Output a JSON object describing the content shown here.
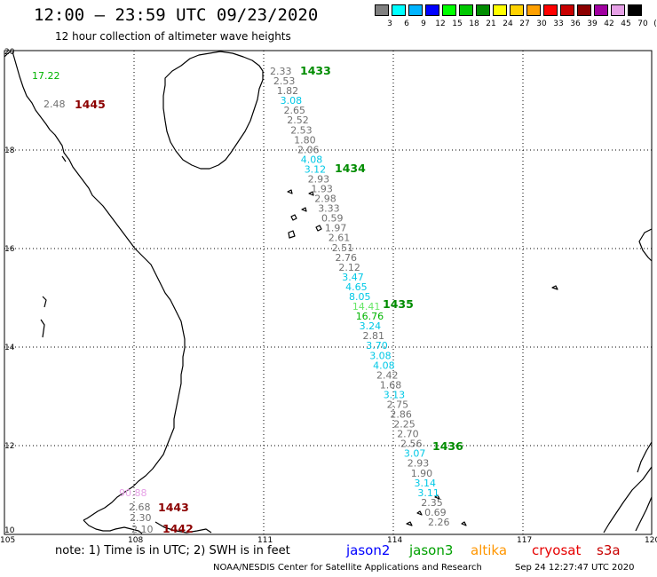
{
  "header": {
    "title": "12:00 – 23:59 UTC 09/23/2020",
    "subtitle": "12 hour collection of altimeter wave heights"
  },
  "legend": {
    "colors": [
      "#808080",
      "#00ffff",
      "#00b4ff",
      "#0000ff",
      "#00ff00",
      "#00c800",
      "#008c00",
      "#ffff00",
      "#ffd200",
      "#ffa000",
      "#ff0000",
      "#c80000",
      "#8c0000",
      "#a000a0",
      "#e6a0e6",
      "#000000"
    ],
    "labels": [
      "3",
      "6",
      "9",
      "12",
      "15",
      "18",
      "21",
      "24",
      "27",
      "30",
      "33",
      "36",
      "39",
      "42",
      "45",
      "70",
      "(ft)"
    ]
  },
  "axes": {
    "lon_labels": [
      "105",
      "108",
      "111",
      "114",
      "117",
      "120"
    ],
    "lat_labels": [
      "20",
      "18",
      "16",
      "14",
      "12",
      "10"
    ]
  },
  "track_values": [
    {
      "text": "2.33",
      "color": "#707070"
    },
    {
      "text": "2.53",
      "color": "#707070"
    },
    {
      "text": "1.82",
      "color": "#707070"
    },
    {
      "text": "3.08",
      "color": "#00c8e6"
    },
    {
      "text": "2.65",
      "color": "#707070"
    },
    {
      "text": "2.52",
      "color": "#707070"
    },
    {
      "text": "2.53",
      "color": "#707070"
    },
    {
      "text": "1.80",
      "color": "#707070"
    },
    {
      "text": "2.06",
      "color": "#707070"
    },
    {
      "text": "4.08",
      "color": "#00c8e6"
    },
    {
      "text": "3.12",
      "color": "#00c8e6"
    },
    {
      "text": "2.93",
      "color": "#707070"
    },
    {
      "text": "1.93",
      "color": "#707070"
    },
    {
      "text": "2.98",
      "color": "#707070"
    },
    {
      "text": "3.33",
      "color": "#707070"
    },
    {
      "text": "0.59",
      "color": "#707070"
    },
    {
      "text": "1.97",
      "color": "#707070"
    },
    {
      "text": "2.61",
      "color": "#707070"
    },
    {
      "text": "2.51",
      "color": "#707070"
    },
    {
      "text": "2.76",
      "color": "#707070"
    },
    {
      "text": "2.12",
      "color": "#707070"
    },
    {
      "text": "3.47",
      "color": "#00c8e6"
    },
    {
      "text": "4.65",
      "color": "#00c8e6"
    },
    {
      "text": "8.05",
      "color": "#00c8e6"
    },
    {
      "text": "14.41",
      "color": "#66e666"
    },
    {
      "text": "16.76",
      "color": "#00b400"
    },
    {
      "text": "3.24",
      "color": "#00c8e6"
    },
    {
      "text": "2.81",
      "color": "#707070"
    },
    {
      "text": "3.70",
      "color": "#00c8e6"
    },
    {
      "text": "3.08",
      "color": "#00c8e6"
    },
    {
      "text": "4.08",
      "color": "#00c8e6"
    },
    {
      "text": "2.42",
      "color": "#707070"
    },
    {
      "text": "1.68",
      "color": "#707070"
    },
    {
      "text": "3.13",
      "color": "#00c8e6"
    },
    {
      "text": "2.75",
      "color": "#707070"
    },
    {
      "text": "2.86",
      "color": "#707070"
    },
    {
      "text": "2.25",
      "color": "#707070"
    },
    {
      "text": "2.70",
      "color": "#707070"
    },
    {
      "text": "2.56",
      "color": "#707070"
    },
    {
      "text": "3.07",
      "color": "#00c8e6"
    },
    {
      "text": "2.93",
      "color": "#707070"
    },
    {
      "text": "1.90",
      "color": "#707070"
    },
    {
      "text": "3.14",
      "color": "#00c8e6"
    },
    {
      "text": "3.11",
      "color": "#00c8e6"
    },
    {
      "text": "2.35",
      "color": "#707070"
    },
    {
      "text": "0.69",
      "color": "#707070"
    },
    {
      "text": "2.26",
      "color": "#707070"
    }
  ],
  "pass_labels": {
    "p1433": "1433",
    "p1434": "1434",
    "p1435": "1435",
    "p1436": "1436",
    "p1445": "1445",
    "p1443": "1443",
    "p1442": "1442"
  },
  "pass_colors": {
    "green": "#008c00",
    "darkred": "#8c0000"
  },
  "west_values": {
    "v1": {
      "text": "17.22",
      "color": "#00b400"
    },
    "v2": {
      "text": "2.48",
      "color": "#707070"
    },
    "v3": {
      "text": "90.88",
      "color": "#e6a0e6"
    },
    "v4": {
      "text": "2.68",
      "color": "#707070"
    },
    "v5": {
      "text": "2.30",
      "color": "#707070"
    },
    "v6": {
      "text": "2.10",
      "color": "#707070"
    }
  },
  "footer": {
    "note": "note: 1) Time is in UTC; 2) SWH is in feet",
    "satellites": [
      {
        "name": "jason2",
        "color": "#0000ff"
      },
      {
        "name": "jason3",
        "color": "#00a000"
      },
      {
        "name": "altika",
        "color": "#ff9600"
      },
      {
        "name": "cryosat",
        "color": "#e60000"
      },
      {
        "name": "s3a",
        "color": "#c80000"
      }
    ],
    "credit": "NOAA/NESDIS Center for Satellite Applications and Research",
    "timestamp": "Sep 24 12:27:47 UTC 2020"
  }
}
